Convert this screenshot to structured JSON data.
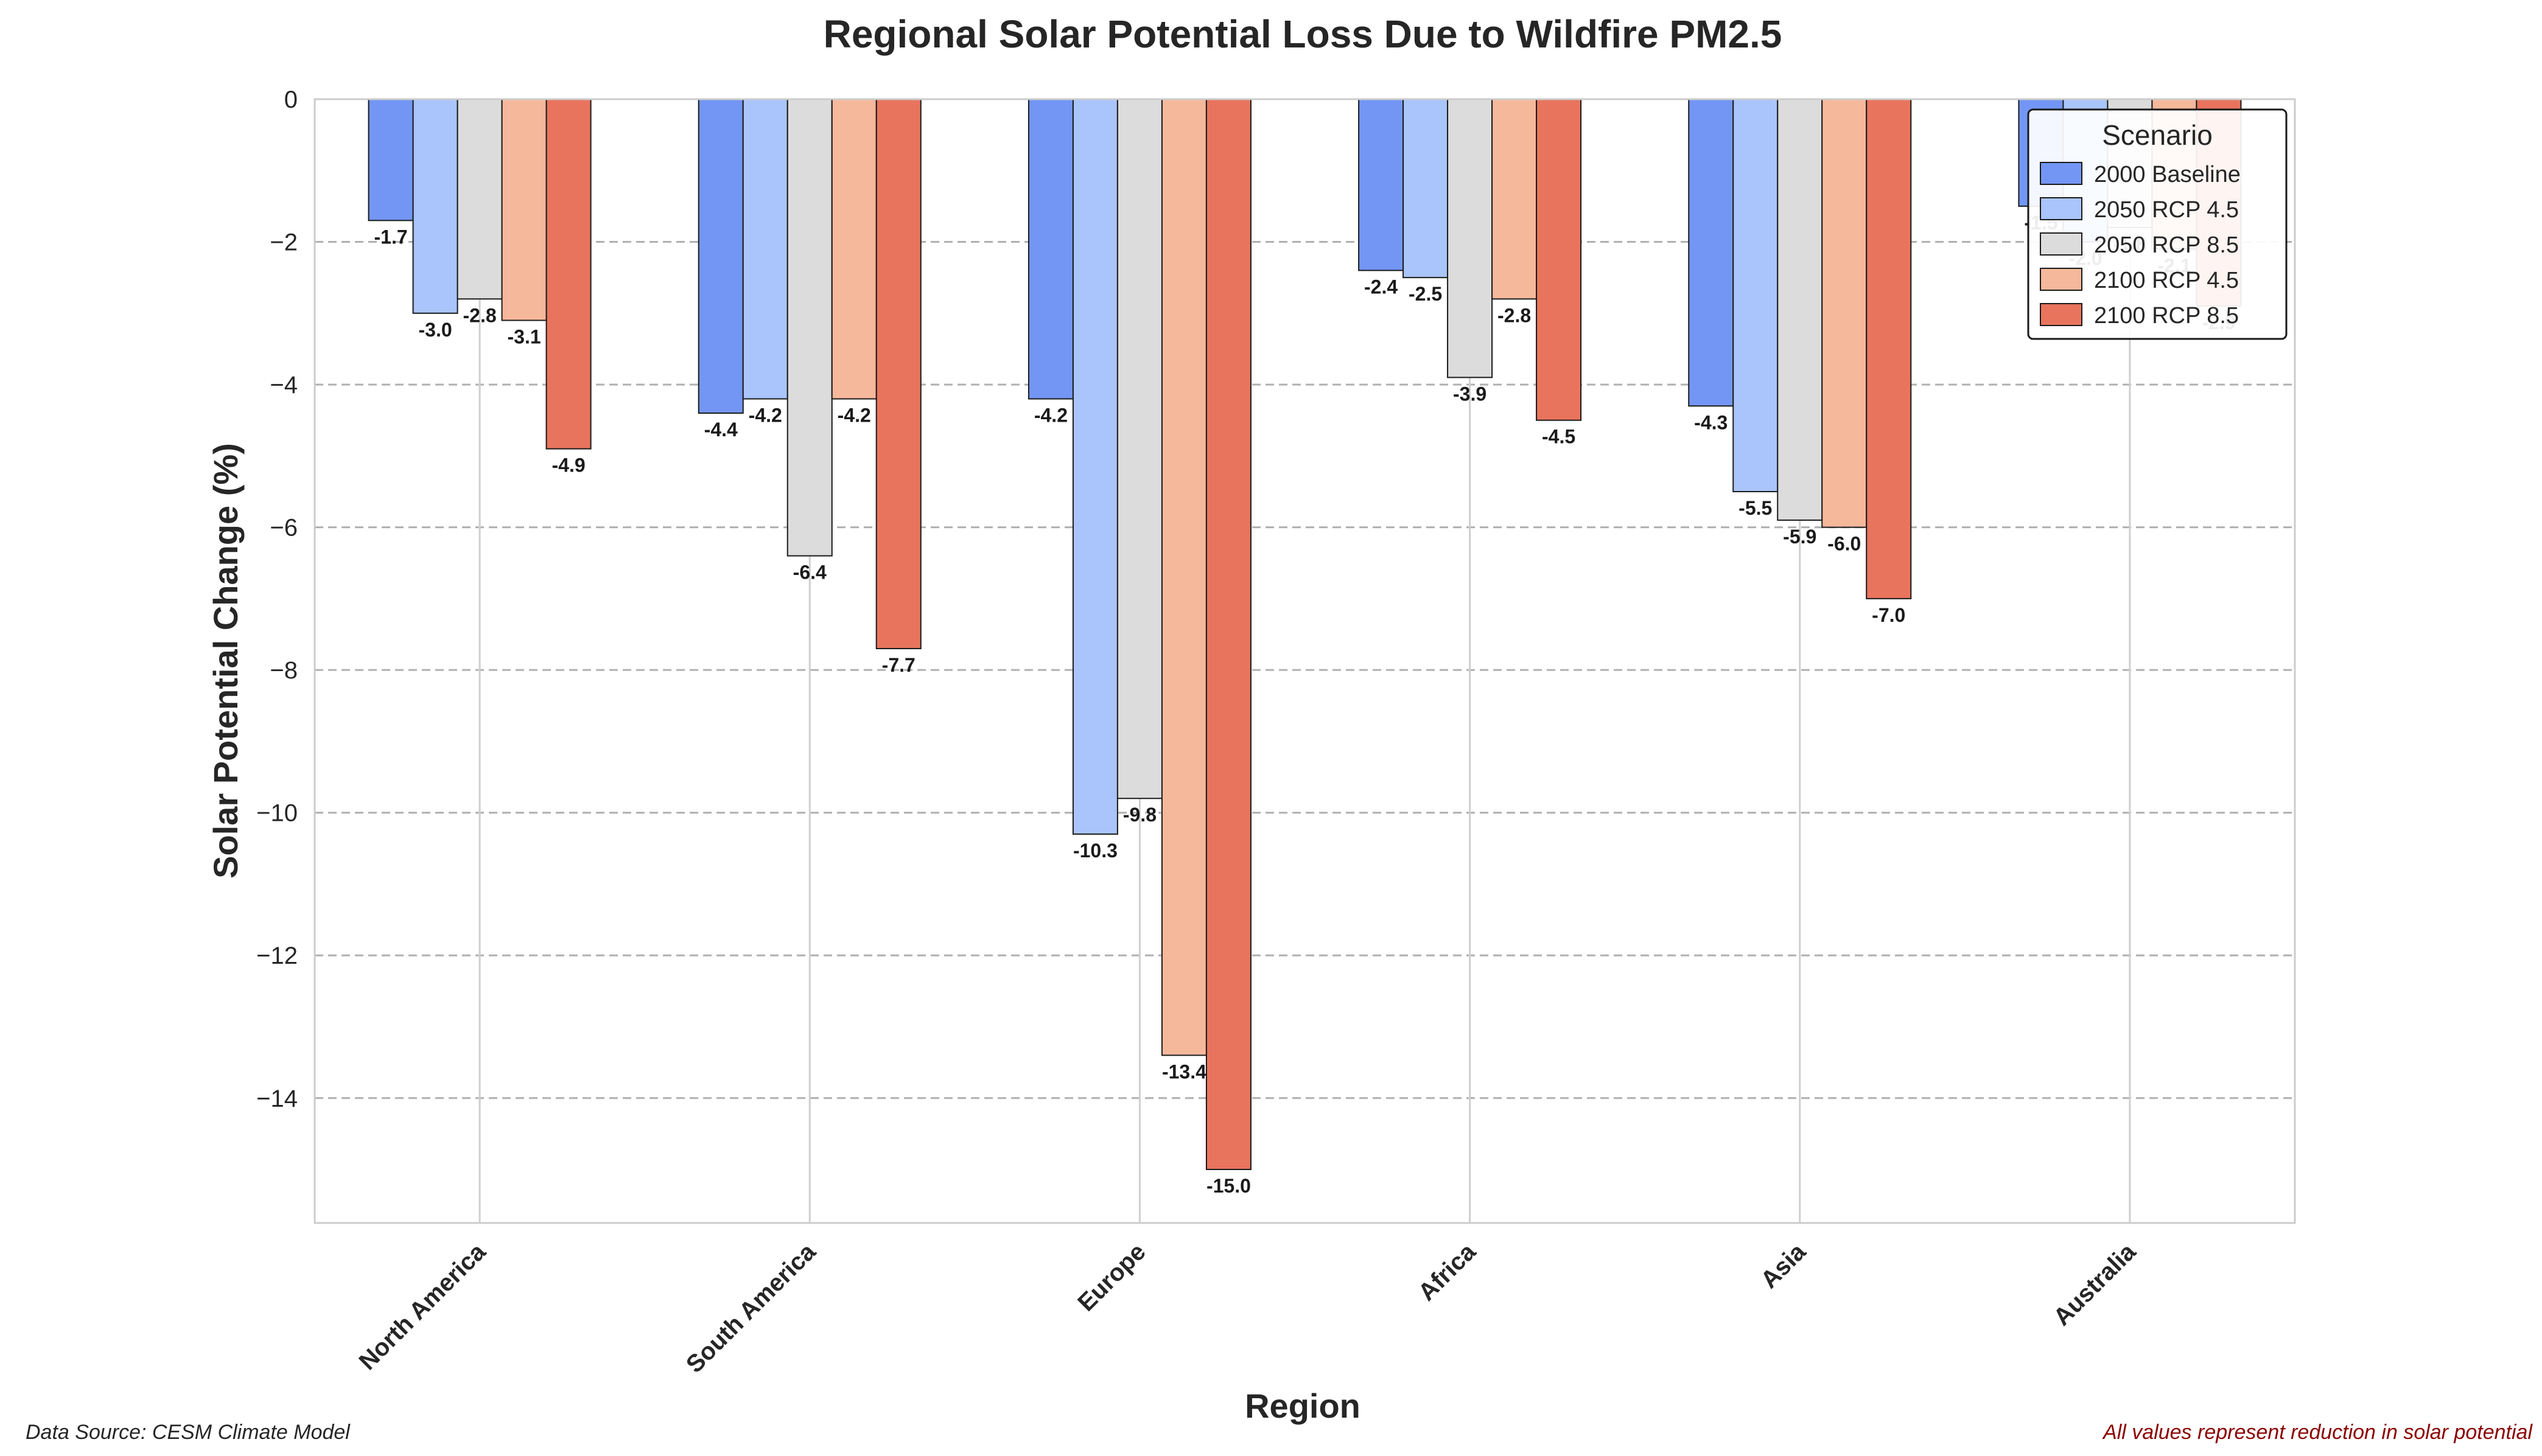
{
  "chart_data": {
    "type": "bar",
    "title": "Regional Solar Potential Loss Due to Wildfire PM2.5",
    "xlabel": "Region",
    "ylabel": "Solar Potential Change (%)",
    "ylim": [
      -15.75,
      0
    ],
    "yticks": [
      0,
      -2,
      -4,
      -6,
      -8,
      -10,
      -12,
      -14
    ],
    "grid": "horizontal-dashed",
    "legend": {
      "title": "Scenario",
      "placement": "top-right"
    },
    "categories": [
      "North America",
      "South America",
      "Europe",
      "Africa",
      "Asia",
      "Australia"
    ],
    "series": [
      {
        "name": "2000 Baseline",
        "color": "#7396f4",
        "values": [
          -1.7,
          -4.4,
          -4.2,
          -2.4,
          -4.3,
          -1.5
        ]
      },
      {
        "name": "2050 RCP 4.5",
        "color": "#a9c5fb",
        "values": [
          -3.0,
          -4.2,
          -10.3,
          -2.5,
          -5.5,
          -2.0
        ]
      },
      {
        "name": "2050 RCP 8.5",
        "color": "#dcdcdc",
        "values": [
          -2.8,
          -6.4,
          -9.8,
          -3.9,
          -5.9,
          -1.8
        ]
      },
      {
        "name": "2100 RCP 4.5",
        "color": "#f6b89b",
        "values": [
          -3.1,
          -4.2,
          -13.4,
          -2.8,
          -6.0,
          -2.1
        ]
      },
      {
        "name": "2100 RCP 8.5",
        "color": "#e9745e",
        "values": [
          -4.9,
          -7.7,
          -15.0,
          -4.5,
          -7.0,
          -2.9
        ]
      }
    ]
  },
  "footer": {
    "source": "Data Source: CESM Climate Model",
    "note": "All values represent reduction in solar potential"
  }
}
